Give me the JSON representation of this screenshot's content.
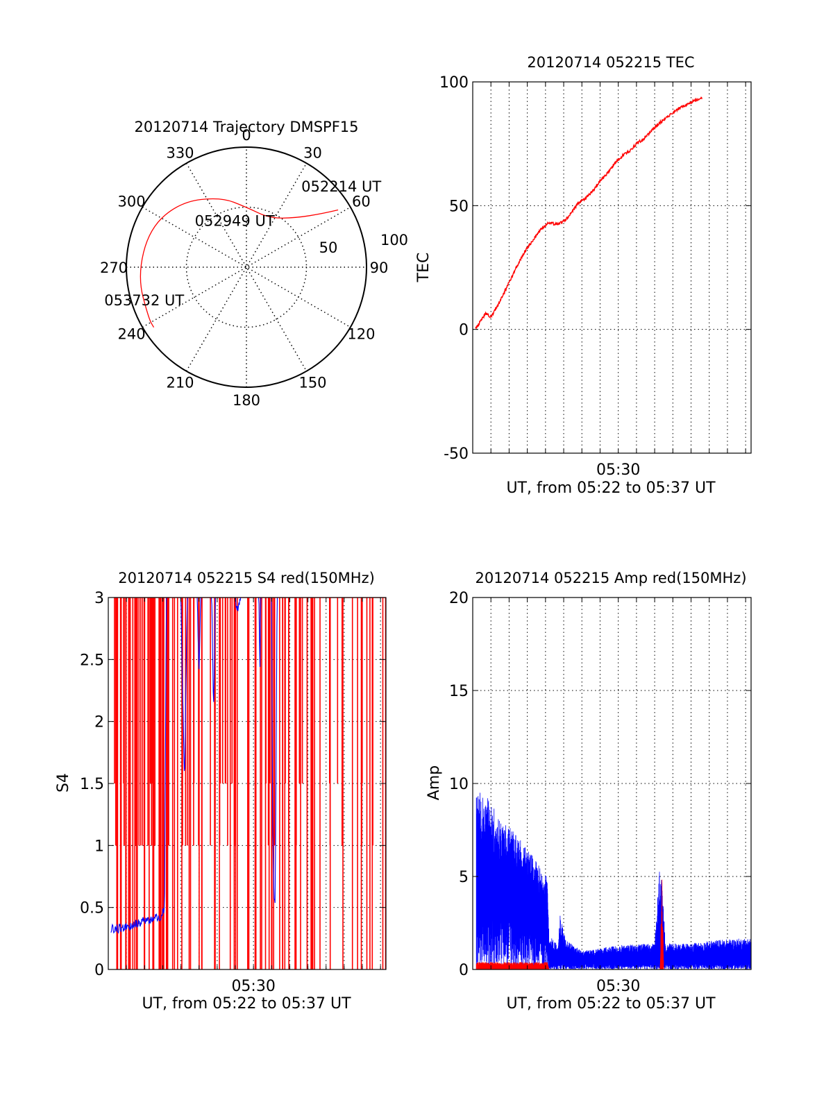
{
  "figure": {
    "colors": {
      "primary": "#ff0000",
      "secondary": "#0000ff",
      "axis": "#000000",
      "background": "#ffffff"
    }
  },
  "chart_data": [
    {
      "type": "polar",
      "title": "20120714 Trajectory DMSPF15",
      "angle_ticks": [
        "0",
        "30",
        "60",
        "90",
        "120",
        "150",
        "180",
        "210",
        "240",
        "270",
        "300",
        "330"
      ],
      "radial_ticks": [
        "50",
        "100"
      ],
      "radial_max": 100,
      "grid": true,
      "series": [
        {
          "color": "#ff0000",
          "points": [
            {
              "az": 58,
              "zen": 90
            },
            {
              "az": 55,
              "zen": 78
            },
            {
              "az": 45,
              "zen": 58
            },
            {
              "az": 25,
              "zen": 45
            },
            {
              "az": 0,
              "zen": 50
            },
            {
              "az": -20,
              "zen": 62
            },
            {
              "az": -45,
              "zen": 77
            },
            {
              "az": -68,
              "zen": 87
            },
            {
              "az": -95,
              "zen": 91
            },
            {
              "az": -118,
              "zen": 92
            },
            {
              "az": -123,
              "zen": 92
            }
          ]
        }
      ],
      "annotations": [
        {
          "text": "052214 UT",
          "az": 50,
          "zen": 105
        },
        {
          "text": "052949 UT",
          "az": -12,
          "zen": 40
        },
        {
          "text": "053732 UT",
          "az": -108,
          "zen": 88
        }
      ]
    },
    {
      "type": "line",
      "title": "20120714 052215 TEC",
      "xlabel": "UT, from 05:22 to 05:37 UT",
      "ylabel": "TEC",
      "x_tick_labels": [
        {
          "minute": 30,
          "label": "05:30"
        }
      ],
      "xlim_minutes": [
        22.0,
        37.3
      ],
      "ylim": [
        -50,
        100
      ],
      "yticks": [
        -50,
        0,
        50,
        100
      ],
      "grid": true,
      "series": [
        {
          "color": "#ff0000",
          "points": [
            [
              22.15,
              0.0
            ],
            [
              22.4,
              3.0
            ],
            [
              22.7,
              6.5
            ],
            [
              23.0,
              5.0
            ],
            [
              23.4,
              10.0
            ],
            [
              23.8,
              16.0
            ],
            [
              24.2,
              22.0
            ],
            [
              24.6,
              28.0
            ],
            [
              25.0,
              33.0
            ],
            [
              25.4,
              37.0
            ],
            [
              25.8,
              41.0
            ],
            [
              26.2,
              43.0
            ],
            [
              26.6,
              42.5
            ],
            [
              27.0,
              43.5
            ],
            [
              27.4,
              47.0
            ],
            [
              27.8,
              51.0
            ],
            [
              28.2,
              53.0
            ],
            [
              28.6,
              56.0
            ],
            [
              29.0,
              60.0
            ],
            [
              29.4,
              63.0
            ],
            [
              29.8,
              67.0
            ],
            [
              30.2,
              70.0
            ],
            [
              30.6,
              72.0
            ],
            [
              31.0,
              75.0
            ],
            [
              31.4,
              77.0
            ],
            [
              31.8,
              80.0
            ],
            [
              32.2,
              83.0
            ],
            [
              32.6,
              85.5
            ],
            [
              33.0,
              87.5
            ],
            [
              33.4,
              89.5
            ],
            [
              33.8,
              91.0
            ],
            [
              34.2,
              92.5
            ],
            [
              34.6,
              93.5
            ]
          ]
        }
      ]
    },
    {
      "type": "line",
      "title": "20120714 052215 S4 red(150MHz)",
      "xlabel": "UT, from 05:22 to 05:37 UT",
      "ylabel": "S4",
      "x_tick_labels": [
        {
          "minute": 30,
          "label": "05:30"
        }
      ],
      "xlim_minutes": [
        22.0,
        37.3
      ],
      "ylim": [
        0,
        3
      ],
      "yticks": [
        0,
        0.5,
        1,
        1.5,
        2,
        2.5,
        3
      ],
      "ytick_labels": [
        "0",
        "0.5",
        "1",
        "1.5",
        "2",
        "2.5",
        "3"
      ],
      "grid": true,
      "series": [
        {
          "color": "#ff0000",
          "style": "dropouts",
          "segments": [
            [
              22.3,
              25.3
            ],
            [
              25.3,
              29.0
            ],
            [
              29.0,
              37.3
            ]
          ],
          "densities": [
            55,
            30,
            60
          ]
        },
        {
          "color": "#0000ff",
          "points": [
            [
              22.15,
              0.33
            ],
            [
              22.5,
              0.33
            ],
            [
              23.0,
              0.34
            ],
            [
              23.5,
              0.37
            ],
            [
              24.0,
              0.4
            ],
            [
              24.5,
              0.41
            ],
            [
              24.9,
              0.43
            ],
            [
              25.1,
              0.5
            ],
            [
              25.2,
              3.0
            ],
            [
              26.0,
              3.0
            ],
            [
              26.1,
              2.2
            ],
            [
              26.2,
              1.5
            ],
            [
              26.35,
              3.0
            ],
            [
              26.9,
              3.0
            ],
            [
              27.0,
              2.4
            ],
            [
              27.1,
              3.0
            ],
            [
              27.7,
              3.0
            ],
            [
              27.8,
              2.1
            ],
            [
              27.9,
              3.0
            ],
            [
              29.0,
              3.0
            ],
            [
              29.1,
              2.9
            ],
            [
              29.3,
              3.0
            ],
            [
              30.3,
              3.0
            ],
            [
              30.35,
              2.4
            ],
            [
              30.4,
              3.0
            ],
            [
              31.0,
              3.0
            ],
            [
              31.05,
              1.3
            ],
            [
              31.12,
              0.6
            ],
            [
              31.2,
              0.55
            ],
            [
              31.3,
              3.0
            ],
            [
              37.3,
              3.0
            ]
          ]
        }
      ]
    },
    {
      "type": "line",
      "title": "20120714 052215 Amp red(150MHz)",
      "xlabel": "UT, from 05:22 to 05:37 UT",
      "ylabel": "Amp",
      "x_tick_labels": [
        {
          "minute": 30,
          "label": "05:30"
        }
      ],
      "xlim_minutes": [
        22.0,
        37.3
      ],
      "ylim": [
        0,
        20
      ],
      "yticks": [
        0,
        5,
        10,
        15,
        20
      ],
      "grid": true,
      "series": [
        {
          "color": "#0000ff",
          "style": "noise",
          "envelope": [
            [
              22.2,
              9.5
            ],
            [
              22.8,
              9.5
            ],
            [
              23.5,
              8.0
            ],
            [
              24.3,
              7.5
            ],
            [
              25.0,
              6.5
            ],
            [
              25.7,
              5.5
            ],
            [
              26.1,
              5.0
            ],
            [
              26.2,
              1.8
            ],
            [
              26.7,
              1.4
            ],
            [
              26.8,
              3.0
            ],
            [
              27.1,
              1.6
            ],
            [
              28.0,
              1.0
            ],
            [
              30.0,
              1.3
            ],
            [
              32.0,
              1.4
            ],
            [
              32.3,
              6.0
            ],
            [
              32.6,
              1.4
            ],
            [
              34.0,
              1.4
            ],
            [
              35.5,
              1.6
            ],
            [
              37.3,
              1.7
            ]
          ],
          "baseline": [
            [
              22.2,
              3.5
            ],
            [
              23.5,
              3.0
            ],
            [
              25.0,
              2.6
            ],
            [
              26.1,
              2.2
            ],
            [
              26.2,
              0.3
            ],
            [
              37.3,
              0.3
            ]
          ]
        },
        {
          "color": "#ff0000",
          "style": "noise",
          "envelope": [
            [
              22.2,
              0.4
            ],
            [
              26.1,
              0.4
            ],
            [
              26.2,
              0.0
            ],
            [
              32.3,
              0.0
            ],
            [
              32.4,
              5.0
            ],
            [
              32.5,
              0.0
            ],
            [
              37.3,
              0.0
            ]
          ],
          "baseline": [
            [
              22.2,
              0.0
            ],
            [
              37.3,
              0.0
            ]
          ]
        }
      ]
    }
  ]
}
